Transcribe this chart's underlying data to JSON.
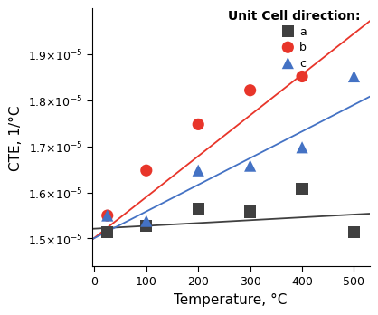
{
  "title": "",
  "xlabel": "Temperature, °C",
  "ylabel": "CTE, 1/°C",
  "legend_title": "Unit Cell direction:",
  "xlim": [
    -5,
    530
  ],
  "ylim": [
    1.44e-05,
    2e-05
  ],
  "xticks": [
    0,
    100,
    200,
    300,
    400,
    500
  ],
  "ytick_values": [
    1.5e-05,
    1.6e-05,
    1.7e-05,
    1.8e-05,
    1.9e-05
  ],
  "series_a": {
    "x": [
      25,
      100,
      200,
      300,
      400,
      500
    ],
    "y": [
      1.513e-05,
      1.528e-05,
      1.565e-05,
      1.558e-05,
      1.608e-05,
      1.513e-05
    ],
    "color": "#404040",
    "marker": "s",
    "label": "a",
    "fit_x": [
      -5,
      530
    ],
    "fit_y": [
      1.521e-05,
      1.554e-05
    ]
  },
  "series_b": {
    "x": [
      25,
      100,
      200,
      300,
      400
    ],
    "y": [
      1.55e-05,
      1.648e-05,
      1.748e-05,
      1.822e-05,
      1.852e-05
    ],
    "color": "#e8352a",
    "marker": "o",
    "label": "b",
    "fit_x": [
      -5,
      530
    ],
    "fit_y": [
      1.497e-05,
      1.972e-05
    ]
  },
  "series_c": {
    "x": [
      25,
      100,
      200,
      300,
      400,
      500
    ],
    "y": [
      1.55e-05,
      1.538e-05,
      1.648e-05,
      1.658e-05,
      1.698e-05,
      1.852e-05
    ],
    "color": "#4472c4",
    "marker": "^",
    "label": "c",
    "fit_x": [
      -5,
      530
    ],
    "fit_y": [
      1.498e-05,
      1.808e-05
    ]
  },
  "background_color": "#ffffff",
  "marker_size": 6,
  "line_width": 1.3,
  "axes_font_size": 11,
  "tick_font_size": 9,
  "legend_font_size": 9,
  "legend_title_font_size": 10
}
